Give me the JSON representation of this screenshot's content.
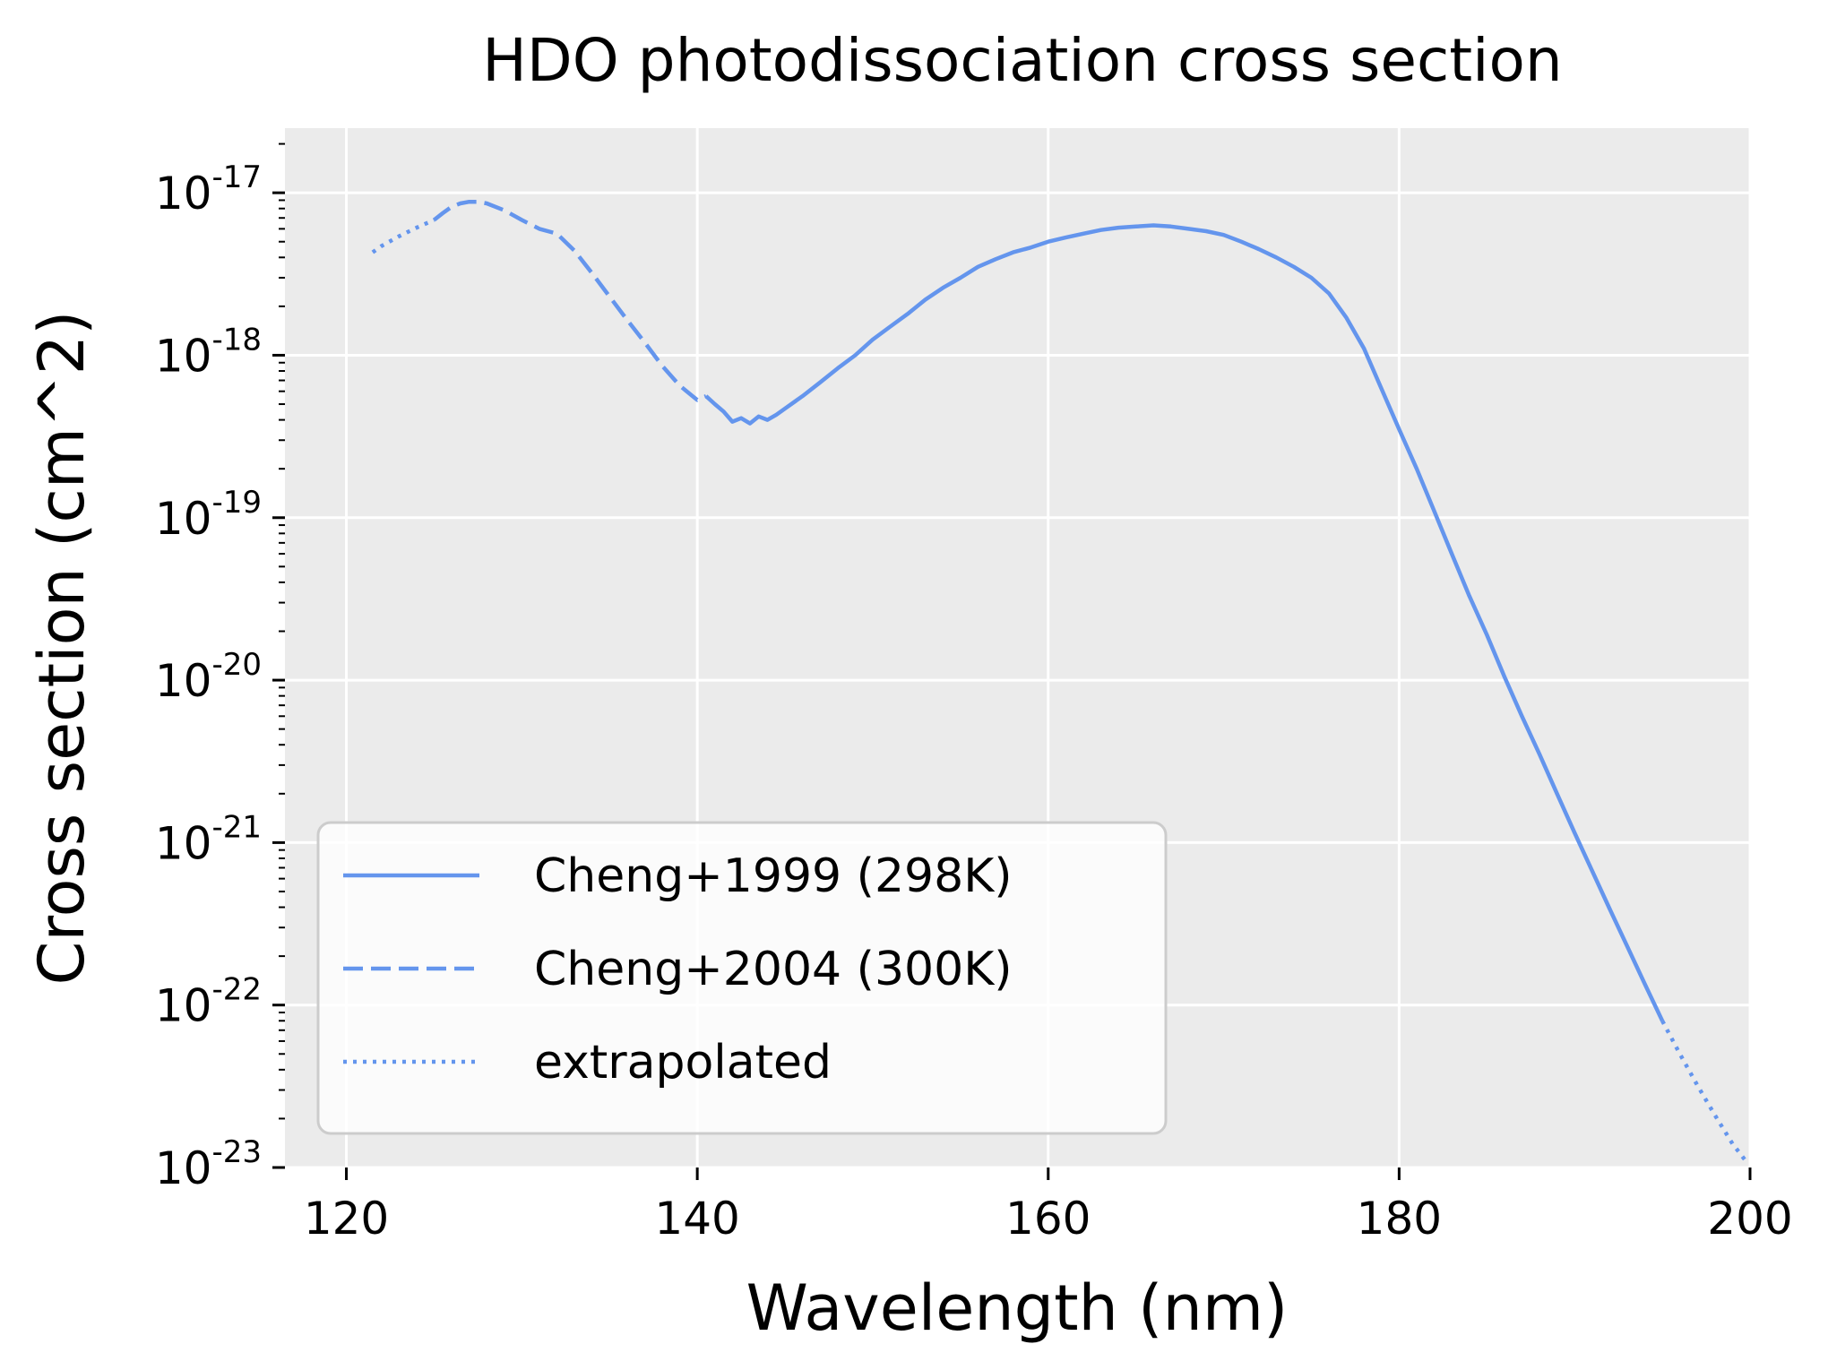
{
  "chart_data": {
    "type": "line",
    "title": "HDO photodissociation cross section",
    "xlabel": "Wavelength (nm)",
    "ylabel": "Cross section (cm^2)",
    "x_scale": "linear",
    "y_scale": "log",
    "xlim": [
      116.5,
      200
    ],
    "ylim": [
      1e-23,
      2.5e-17
    ],
    "x_ticks": [
      120,
      140,
      160,
      180,
      200
    ],
    "x_tick_labels": [
      "120",
      "140",
      "160",
      "180",
      "200"
    ],
    "y_ticks": [
      1e-23,
      1e-22,
      1e-21,
      1e-20,
      1e-19,
      1e-18,
      1e-17
    ],
    "y_tick_labels": [
      {
        "base": "10",
        "exp": "-23"
      },
      {
        "base": "10",
        "exp": "-22"
      },
      {
        "base": "10",
        "exp": "-21"
      },
      {
        "base": "10",
        "exp": "-20"
      },
      {
        "base": "10",
        "exp": "-19"
      },
      {
        "base": "10",
        "exp": "-18"
      },
      {
        "base": "10",
        "exp": "-17"
      }
    ],
    "grid": true,
    "legend_position": "lower-left",
    "line_color": "#6495ED",
    "background_color": "#EBEBEB",
    "series": [
      {
        "name": "Cheng+1999 (298K)",
        "style": "solid",
        "x": [
          140.5,
          141,
          141.5,
          142,
          142.5,
          143,
          143.5,
          144,
          144.5,
          145,
          146,
          147,
          148,
          149,
          150,
          151,
          152,
          153,
          154,
          155,
          156,
          157,
          158,
          159,
          160,
          161,
          162,
          163,
          164,
          165,
          166,
          167,
          168,
          169,
          170,
          171,
          172,
          173,
          174,
          175,
          176,
          177,
          178,
          179,
          180,
          181,
          182,
          183,
          184,
          185,
          186,
          187,
          188,
          189,
          190,
          191,
          192,
          193,
          194,
          195
        ],
        "y": [
          5.6e-19,
          5e-19,
          4.5e-19,
          3.9e-19,
          4.1e-19,
          3.8e-19,
          4.2e-19,
          4e-19,
          4.3e-19,
          4.7e-19,
          5.6e-19,
          6.8e-19,
          8.3e-19,
          1e-18,
          1.25e-18,
          1.5e-18,
          1.8e-18,
          2.2e-18,
          2.6e-18,
          3e-18,
          3.5e-18,
          3.9e-18,
          4.3e-18,
          4.6e-18,
          5e-18,
          5.3e-18,
          5.6e-18,
          5.9e-18,
          6.1e-18,
          6.2e-18,
          6.3e-18,
          6.2e-18,
          6e-18,
          5.8e-18,
          5.5e-18,
          5e-18,
          4.5e-18,
          4e-18,
          3.5e-18,
          3e-18,
          2.4e-18,
          1.7e-18,
          1.1e-18,
          6.2e-19,
          3.5e-19,
          2e-19,
          1.1e-19,
          6e-20,
          3.3e-20,
          1.9e-20,
          1.05e-20,
          6e-21,
          3.5e-21,
          2e-21,
          1.15e-21,
          6.7e-22,
          3.9e-22,
          2.3e-22,
          1.35e-22,
          8e-23
        ]
      },
      {
        "name": "Cheng+2004 (300K)",
        "style": "dashed",
        "x": [
          125,
          125.5,
          126,
          126.5,
          127,
          127.5,
          128,
          129,
          130,
          131,
          132,
          133,
          134,
          135,
          136,
          137,
          138,
          139,
          140,
          140.5
        ],
        "y": [
          6.8e-18,
          7.5e-18,
          8.2e-18,
          8.6e-18,
          8.8e-18,
          8.8e-18,
          8.6e-18,
          7.8e-18,
          6.8e-18,
          6e-18,
          5.6e-18,
          4.4e-18,
          3.2e-18,
          2.3e-18,
          1.65e-18,
          1.2e-18,
          8.6e-19,
          6.5e-19,
          5.3e-19,
          5.6e-19
        ]
      },
      {
        "name": "extrapolated",
        "style": "dotted",
        "x": [
          121.5,
          122,
          123,
          124,
          125
        ],
        "y": [
          4.3e-18,
          4.7e-18,
          5.4e-18,
          6.1e-18,
          6.8e-18
        ]
      },
      {
        "name": "extrapolated",
        "style": "dotted",
        "x": [
          195,
          196,
          197,
          198,
          199,
          199.9
        ],
        "y": [
          8e-23,
          5e-23,
          3.2e-23,
          2.1e-23,
          1.4e-23,
          1.05e-23
        ]
      }
    ],
    "legend": [
      {
        "label": "Cheng+1999 (298K)",
        "style": "solid"
      },
      {
        "label": "Cheng+2004 (300K)",
        "style": "dashed"
      },
      {
        "label": "extrapolated",
        "style": "dotted"
      }
    ]
  }
}
